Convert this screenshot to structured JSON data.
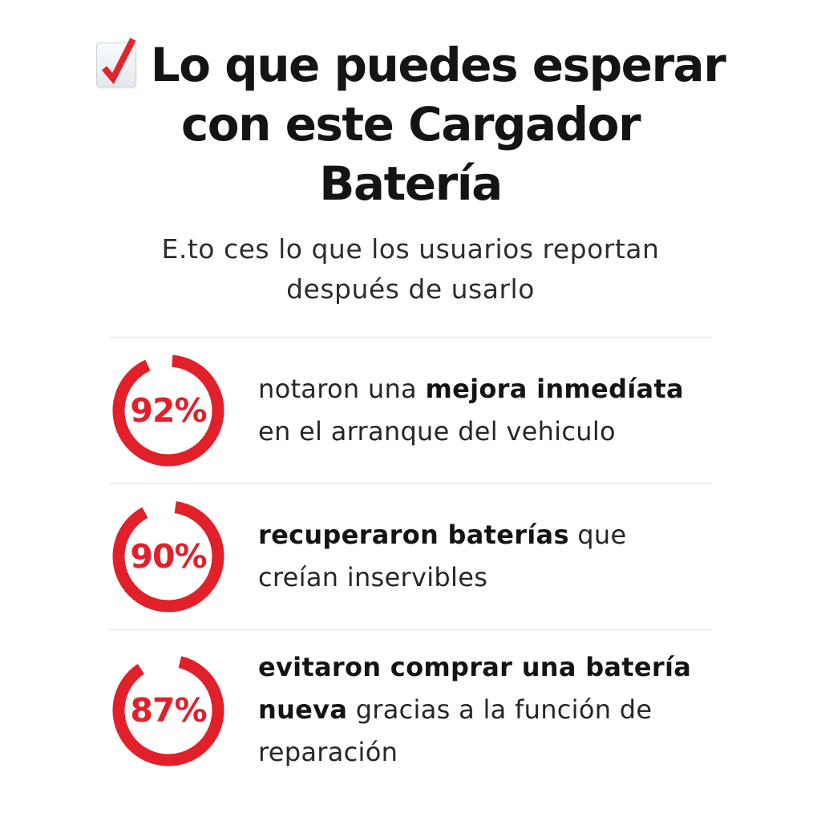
{
  "colors": {
    "accent_red": "#e1202a",
    "check_red": "#e0252b",
    "divider": "#ededeb",
    "text_dark": "#141414"
  },
  "header": {
    "check_icon": "red-checkmark-in-box",
    "title_lines": [
      "Lo que puedes esperar",
      "con este Cargador",
      "Batería"
    ],
    "subtitle_lines": [
      "E.to ces lo que los usuarios reportan",
      "después de usarlo"
    ]
  },
  "stats": [
    {
      "value": 92,
      "label": "92%",
      "pre": "notaron una ",
      "bold": "mejora inmedíata",
      "post": " en el arranque del vehiculo"
    },
    {
      "value": 90,
      "label": "90%",
      "pre": "",
      "bold": "recuperaron baterías",
      "post": " que creían inservibles"
    },
    {
      "value": 87,
      "label": "87%",
      "pre": "",
      "bold": "evitaron comprar una batería nueva",
      "post": " gracias a la función de reparación"
    }
  ]
}
